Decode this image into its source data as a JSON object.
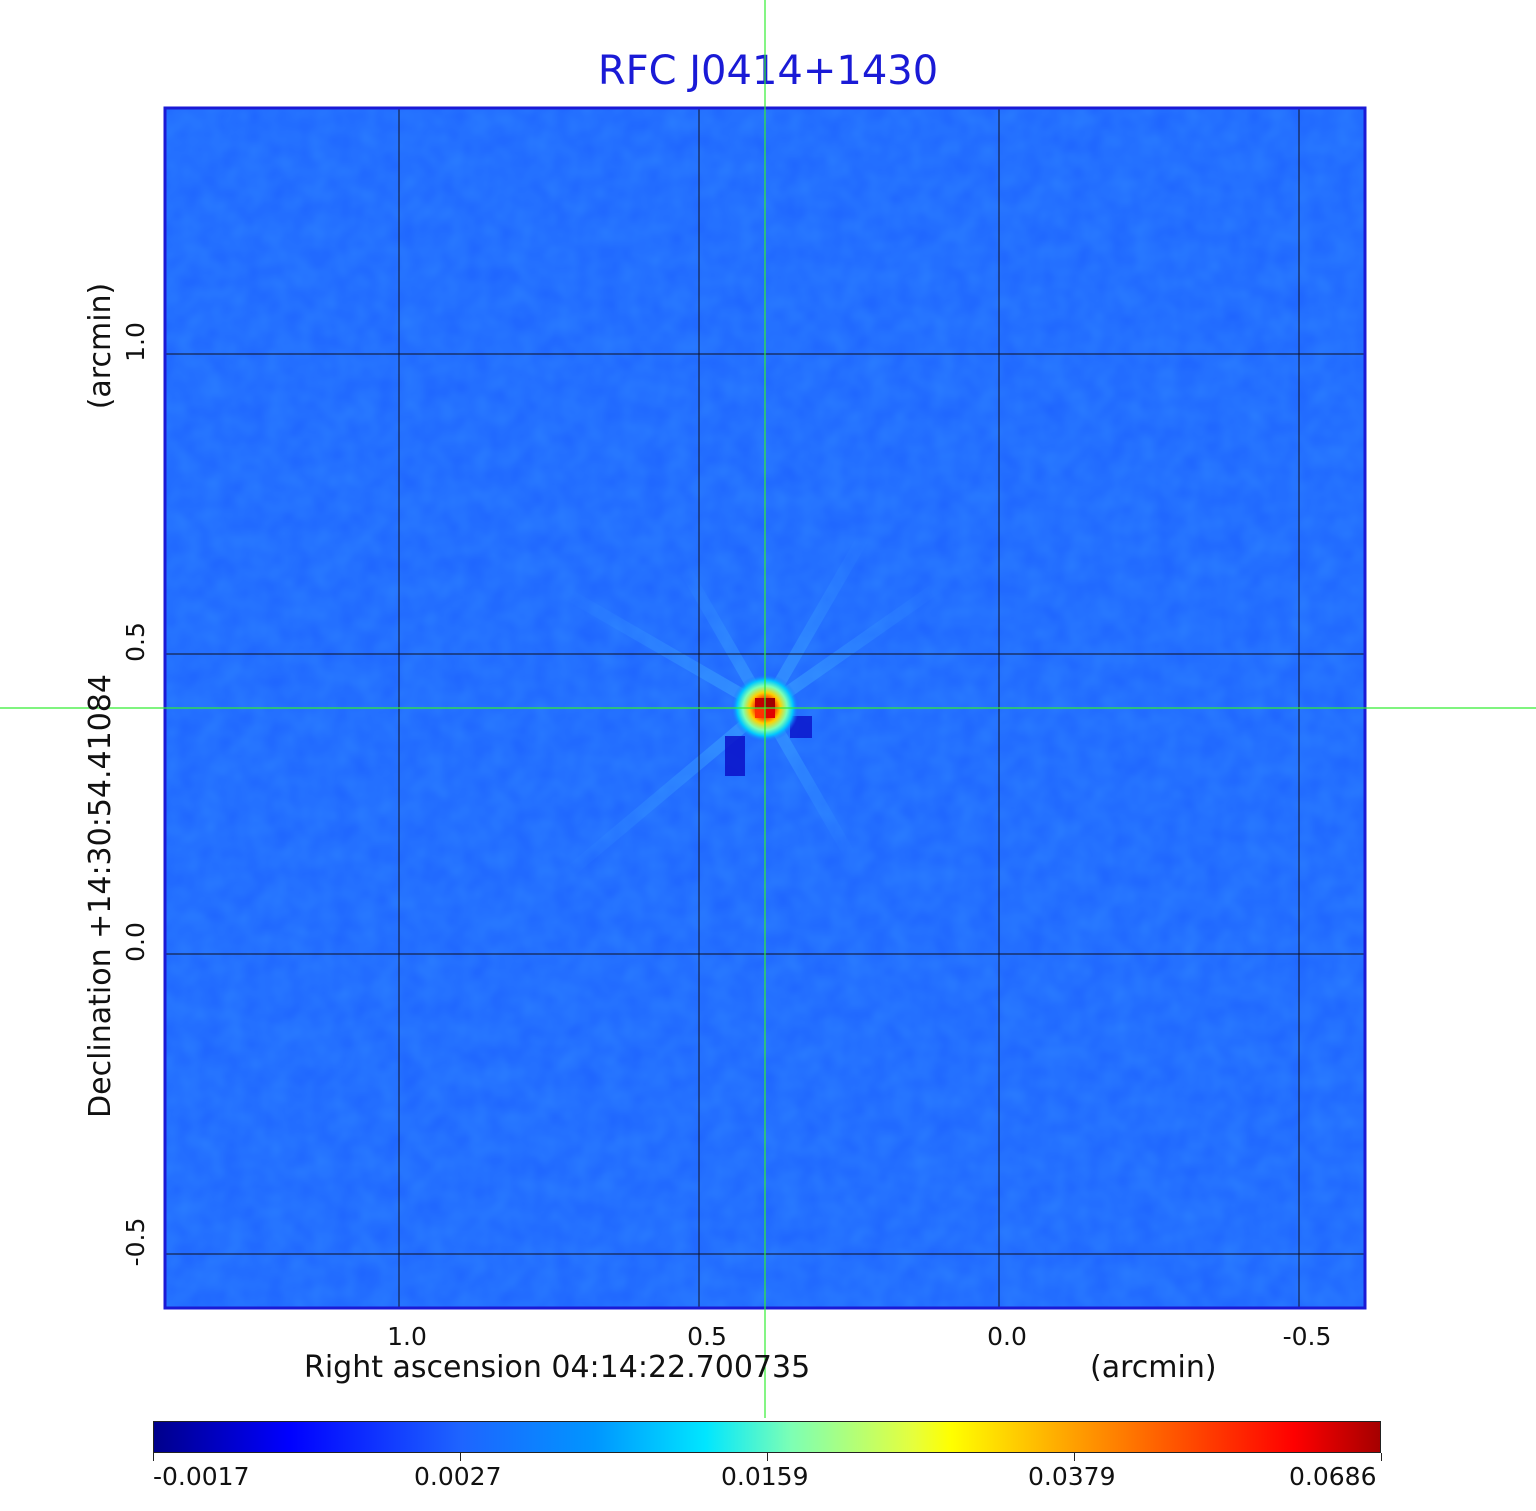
{
  "chart_data": {
    "type": "heatmap",
    "title": "RFC J0414+1430",
    "xlabel": "Right ascension  04:14:22.700735",
    "xunit": "(arcmin)",
    "ylabel": "Declination  +14:30:54.41084",
    "yunit": "(arcmin)",
    "xlim": [
      1.39,
      -0.61
    ],
    "ylim": [
      -0.59,
      1.41
    ],
    "x_ticks": [
      {
        "value": 1.0,
        "label": "1.0"
      },
      {
        "value": 0.5,
        "label": "0.5"
      },
      {
        "value": 0.0,
        "label": "0.0"
      },
      {
        "value": -0.5,
        "label": "-0.5"
      }
    ],
    "y_ticks": [
      {
        "value": 1.0,
        "label": "1.0"
      },
      {
        "value": 0.5,
        "label": "0.5"
      },
      {
        "value": 0.0,
        "label": "0.0"
      },
      {
        "value": -0.5,
        "label": "-0.5"
      }
    ],
    "grid": true,
    "crosshair": {
      "x": 0.39,
      "y": 0.41
    },
    "peak": {
      "x": 0.39,
      "y": 0.41,
      "value": 0.0686
    },
    "colorbar": {
      "colormap": "jet",
      "ticks": [
        "-0.0017",
        "0.0027",
        "0.0159",
        "0.0379",
        "0.0686"
      ]
    }
  },
  "colors": {
    "title": "#1a1ad6",
    "frame": "#1a1ad6",
    "background_field": "#1e64ff",
    "crosshair": "#33ee33",
    "grid": "#111122"
  }
}
